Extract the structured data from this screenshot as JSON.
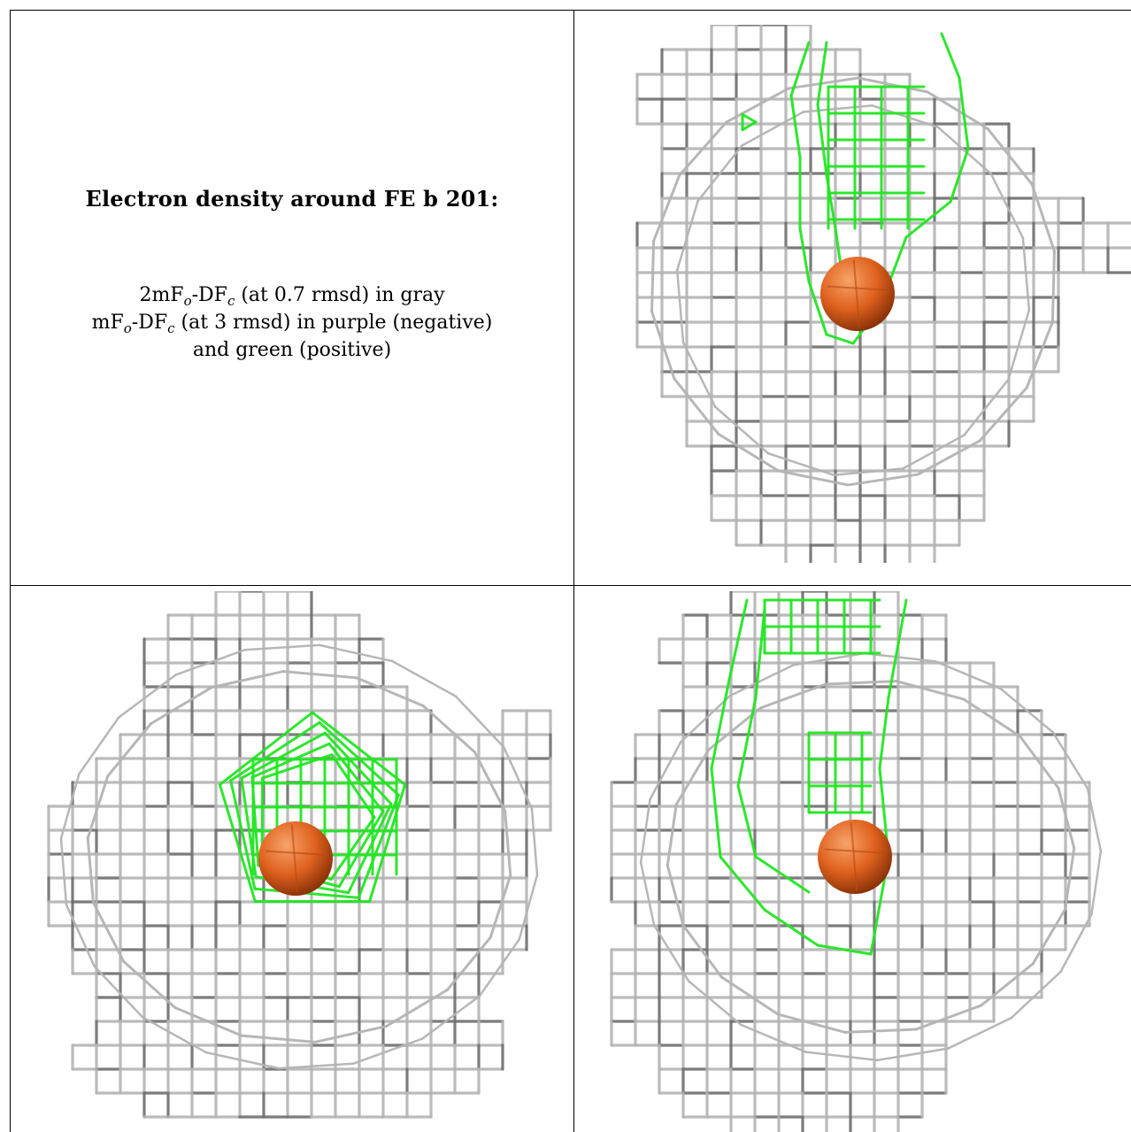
{
  "caption": {
    "title": "Electron density around FE b 201:",
    "map1": {
      "prefix": "2mF",
      "sub1": "o",
      "mid": "-DF",
      "sub2": "c",
      "suffix": " (at 0.7 rmsd) in gray"
    },
    "map2": {
      "prefix": "mF",
      "sub1": "o",
      "mid": "-DF",
      "sub2": "c",
      "suffix": " (at 3 rmsd) in purple (negative)"
    },
    "map2_cont": "and green (positive)"
  },
  "colors": {
    "mesh_2fofc": "#b4b4b4",
    "mesh_2fofc_dark": "#6e6e6e",
    "mesh_fofc_positive": "#22e622",
    "atom_fe": "#e0621f"
  },
  "views": [
    {
      "name": "view-1",
      "icon": "fe-atom-sphere"
    },
    {
      "name": "view-2",
      "icon": "fe-atom-sphere"
    },
    {
      "name": "view-3",
      "icon": "fe-atom-sphere"
    }
  ]
}
